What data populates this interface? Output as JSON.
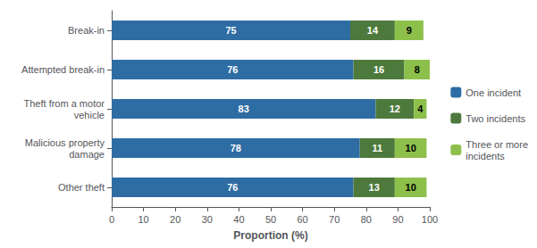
{
  "chart_data": {
    "type": "bar",
    "orientation": "horizontal",
    "stacked": true,
    "data_labels": true,
    "categories": [
      "Break-in",
      "Attempted break-in",
      "Theft from a motor\nvehicle",
      "Malicious property\ndamage",
      "Other theft"
    ],
    "series": [
      {
        "name": "One incident",
        "color": "#2E6DA4",
        "values": [
          75,
          76,
          83,
          78,
          76
        ]
      },
      {
        "name": "Two incidents",
        "color": "#4D7A3C",
        "values": [
          14,
          16,
          12,
          11,
          13
        ]
      },
      {
        "name": "Three or more\nincidents",
        "color": "#8DC04B",
        "values": [
          9,
          8,
          4,
          10,
          10
        ]
      }
    ],
    "xlabel": "Proportion (%)",
    "xlim": [
      0,
      100
    ],
    "xticks": [
      0,
      10,
      20,
      30,
      40,
      50,
      60,
      70,
      80,
      90,
      100
    ],
    "grid": false,
    "legend": "right"
  }
}
